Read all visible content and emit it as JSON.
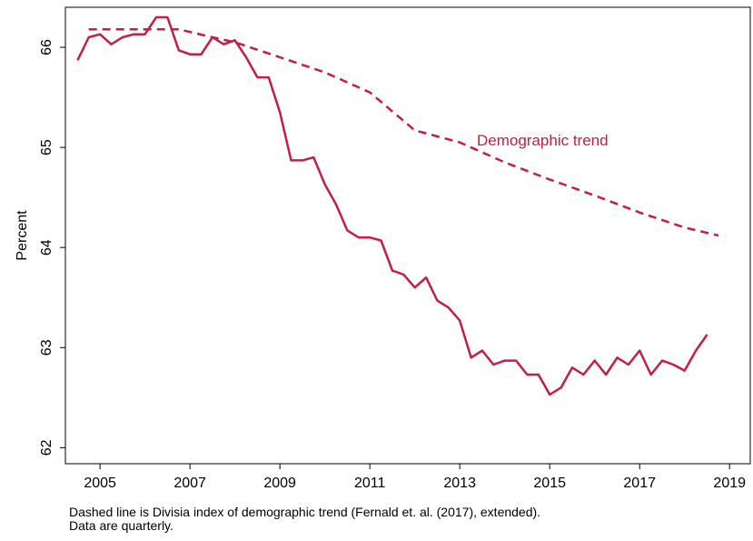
{
  "chart_data": {
    "type": "line",
    "y_label": "Percent",
    "annotation": "Demographic trend",
    "notes": [
      "Dashed line is Divisia index of demographic trend (Fernald et. al. (2017), extended).",
      "Data are quarterly."
    ],
    "xlim": [
      2004.23,
      2019.46
    ],
    "xticks": [
      2005,
      2007,
      2009,
      2011,
      2013,
      2015,
      2017,
      2019
    ],
    "ylim": [
      61.84,
      66.4
    ],
    "yticks": [
      62,
      63,
      64,
      65,
      66
    ],
    "grid": false,
    "series": [
      {
        "color": "#c41e45",
        "dash": false,
        "x": [
          2004.5,
          2004.75,
          2005,
          2005.25,
          2005.5,
          2005.75,
          2006,
          2006.25,
          2006.5,
          2006.75,
          2007,
          2007.25,
          2007.5,
          2007.75,
          2008,
          2008.25,
          2008.5,
          2008.75,
          2009,
          2009.25,
          2009.5,
          2009.75,
          2010,
          2010.25,
          2010.5,
          2010.75,
          2011,
          2011.25,
          2011.5,
          2011.75,
          2012,
          2012.25,
          2012.5,
          2012.75,
          2013,
          2013.25,
          2013.5,
          2013.75,
          2014,
          2014.25,
          2014.5,
          2014.75,
          2015,
          2015.25,
          2015.5,
          2015.75,
          2016,
          2016.25,
          2016.5,
          2016.75,
          2017,
          2017.25,
          2017.5,
          2017.75,
          2018,
          2018.25,
          2018.5
        ],
        "values": [
          65.87,
          66.1,
          66.13,
          66.03,
          66.1,
          66.13,
          66.13,
          66.3,
          66.3,
          65.97,
          65.93,
          65.93,
          66.1,
          66.03,
          66.07,
          65.9,
          65.7,
          65.7,
          65.35,
          64.87,
          64.87,
          64.9,
          64.63,
          64.43,
          64.17,
          64.1,
          64.1,
          64.07,
          63.77,
          63.73,
          63.6,
          63.7,
          63.47,
          63.4,
          63.27,
          62.9,
          62.97,
          62.83,
          62.87,
          62.87,
          62.73,
          62.73,
          62.53,
          62.6,
          62.8,
          62.73,
          62.87,
          62.73,
          62.9,
          62.83,
          62.97,
          62.73,
          62.87,
          62.83,
          62.77,
          62.97,
          63.13
        ]
      },
      {
        "color": "#c41e45",
        "dash": true,
        "x": [
          2004.75,
          2006.75,
          2007.5,
          2008,
          2009,
          2010,
          2011,
          2012,
          2013,
          2014,
          2015,
          2016,
          2017,
          2018,
          2018.75
        ],
        "values": [
          66.18,
          66.18,
          66.1,
          66.05,
          65.9,
          65.75,
          65.55,
          65.17,
          65.05,
          64.85,
          64.68,
          64.52,
          64.35,
          64.2,
          64.12
        ]
      }
    ]
  }
}
